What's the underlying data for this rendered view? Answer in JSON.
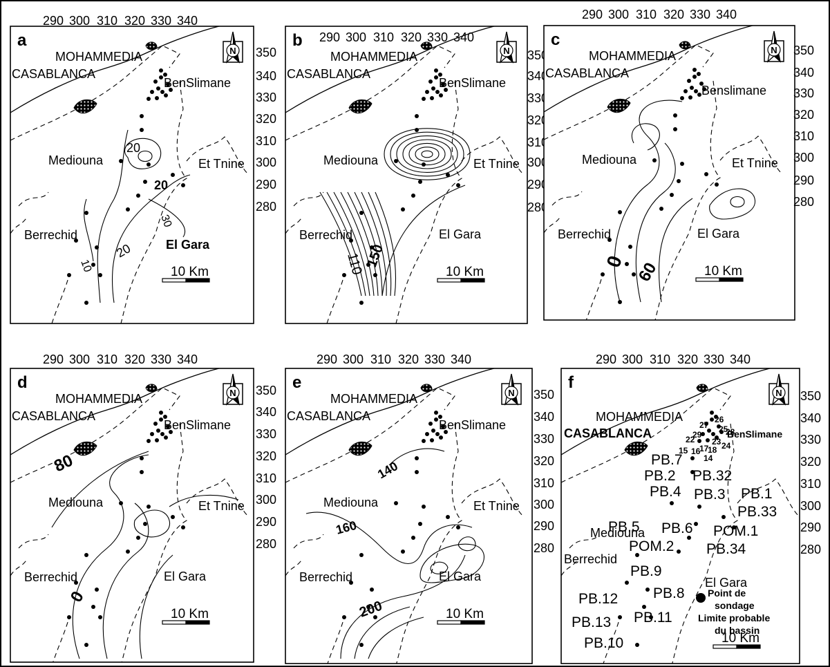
{
  "figure": {
    "panels": [
      {
        "id": "a",
        "label": "a",
        "x_ticks": [
          "290",
          "300",
          "310",
          "320",
          "330",
          "340"
        ],
        "y_ticks": [
          "350",
          "340",
          "330",
          "320",
          "310",
          "300",
          "290",
          "280"
        ],
        "places": [
          "MOHAMMEDIA",
          "CASABLANCA",
          "BenSlimane",
          "Mediouna",
          "Et Tnine",
          "Berrechid",
          "El Gara"
        ],
        "contour_labels": [
          "20",
          "20",
          "30",
          "10",
          "20"
        ],
        "scale_label": "10 Km",
        "north": "N"
      },
      {
        "id": "b",
        "label": "b",
        "x_ticks": [
          "290",
          "300",
          "310",
          "320",
          "330",
          "340"
        ],
        "y_ticks": [
          "350",
          "340",
          "330",
          "320",
          "310",
          "300",
          "290",
          "280"
        ],
        "places": [
          "MOHAMMEDIA",
          "CASABLANCA",
          "BenSlimane",
          "Mediouna",
          "Et Tnine",
          "Berrechid",
          "El Gara"
        ],
        "contour_labels": [
          "110",
          "150"
        ],
        "scale_label": "10 Km",
        "north": "N"
      },
      {
        "id": "c",
        "label": "c",
        "x_ticks": [
          "290",
          "300",
          "310",
          "320",
          "330",
          "340"
        ],
        "y_ticks": [
          "350",
          "340",
          "330",
          "320",
          "310",
          "300",
          "290",
          "280"
        ],
        "places": [
          "MOHAMMEDIA",
          "CASABLANCA",
          "Benslimane",
          "Mediouna",
          "Et Tnine",
          "Berrechid",
          "El Gara"
        ],
        "contour_labels": [
          "0",
          "60"
        ],
        "scale_label": "10 Km",
        "north": "N"
      },
      {
        "id": "d",
        "label": "d",
        "x_ticks": [
          "290",
          "300",
          "310",
          "320",
          "330",
          "340"
        ],
        "y_ticks": [
          "350",
          "340",
          "330",
          "320",
          "310",
          "300",
          "290",
          "280"
        ],
        "places": [
          "MOHAMMEDIA",
          "CASABLANCA",
          "BenSlimane",
          "Mediouna",
          "Et Tnine",
          "Berrechid",
          "El Gara"
        ],
        "contour_labels": [
          "80",
          "0"
        ],
        "scale_label": "10 Km",
        "north": "N"
      },
      {
        "id": "e",
        "label": "e",
        "x_ticks": [
          "290",
          "300",
          "310",
          "320",
          "330",
          "340"
        ],
        "y_ticks": [
          "350",
          "340",
          "330",
          "320",
          "310",
          "300",
          "290",
          "280"
        ],
        "places": [
          "MOHAMMEDIA",
          "CASABLANCA",
          "BenSlimane",
          "Mediouna",
          "Et Tnine",
          "Berrechid",
          "El Gara"
        ],
        "contour_labels": [
          "140",
          "160",
          "200"
        ],
        "scale_label": "10 Km",
        "north": "N"
      },
      {
        "id": "f",
        "label": "f",
        "x_ticks": [
          "290",
          "300",
          "310",
          "320",
          "330",
          "340"
        ],
        "y_ticks": [
          "350",
          "340",
          "330",
          "320",
          "310",
          "300",
          "290",
          "280"
        ],
        "places": [
          "MOHAMMEDIA",
          "CASABLANCA",
          "BenSlimane",
          "Mediouna",
          "Berrechid",
          "El Gara"
        ],
        "wells": [
          "PB.7",
          "PB.2",
          "PB.32",
          "PB.4",
          "PB.3",
          "PB.1",
          "PB.33",
          "PB.5",
          "PB.6",
          "POM.1",
          "POM.2",
          "PB.34",
          "PB.9",
          "PB.8",
          "PB.12",
          "PB.11",
          "PB.13",
          "PB.10"
        ],
        "small_numbers": [
          "26",
          "27",
          "25",
          "28",
          "29",
          "22",
          "23",
          "24",
          "18",
          "17",
          "15",
          "16",
          "14"
        ],
        "legend": [
          "Point de",
          "sondage",
          "Limite probable",
          "du bassin"
        ],
        "scale_label": "10 Km",
        "north": "N"
      }
    ]
  },
  "colors": {
    "ink": "#000000",
    "paper": "#ffffff"
  }
}
